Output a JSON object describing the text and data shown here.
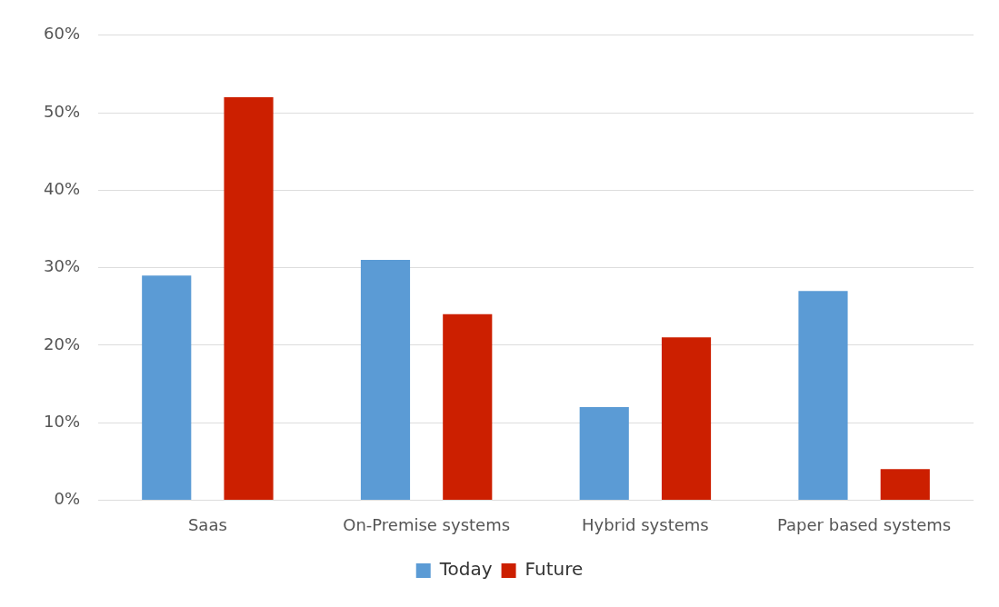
{
  "chart_data": {
    "type": "bar",
    "categories": [
      "Saas",
      "On-Premise systems",
      "Hybrid systems",
      "Paper based systems"
    ],
    "series": [
      {
        "name": "Today",
        "color": "#5b9bd5",
        "values": [
          29,
          31,
          12,
          27
        ]
      },
      {
        "name": "Future",
        "color": "#cc1f00",
        "values": [
          52,
          24,
          21,
          4
        ]
      }
    ],
    "ylim": [
      0,
      60
    ],
    "yticks": [
      {
        "value": 0,
        "label": "0%"
      },
      {
        "value": 10,
        "label": "10%"
      },
      {
        "value": 20,
        "label": "20%"
      },
      {
        "value": 30,
        "label": "30%"
      },
      {
        "value": 40,
        "label": "40%"
      },
      {
        "value": 50,
        "label": "50%"
      },
      {
        "value": 60,
        "label": "60%"
      }
    ],
    "grid": "y",
    "legend": "bottom"
  }
}
